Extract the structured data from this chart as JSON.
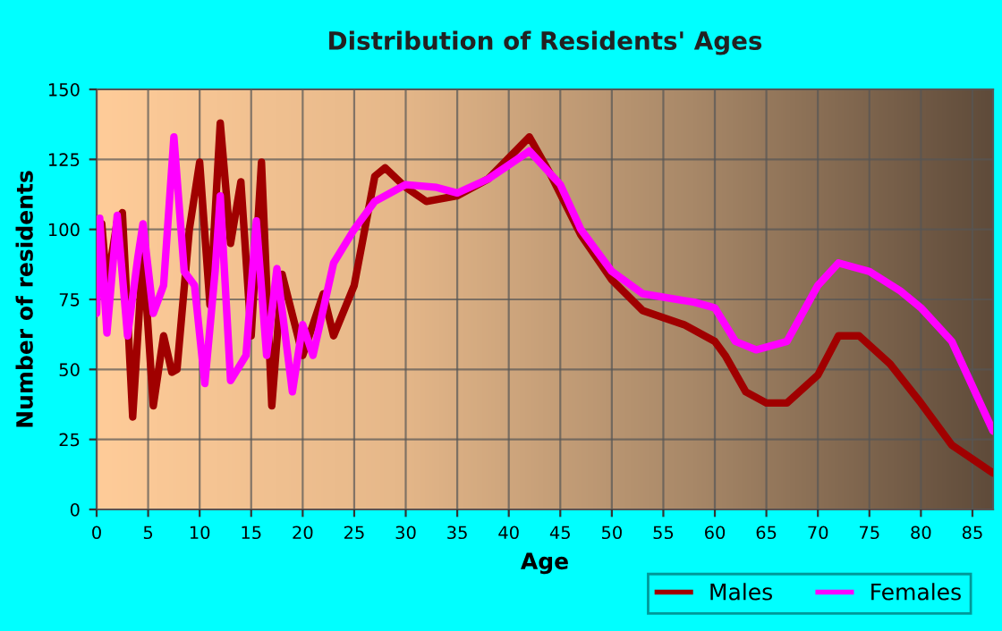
{
  "chart_data": {
    "type": "line",
    "title": "Distribution of Residents' Ages",
    "xlabel": "Age",
    "ylabel": "Number of residents",
    "xlim": [
      0,
      87
    ],
    "xticks": [
      0,
      5,
      10,
      15,
      20,
      25,
      30,
      35,
      40,
      45,
      50,
      55,
      60,
      65,
      70,
      75,
      80,
      85
    ],
    "ylim": [
      0,
      150
    ],
    "yticks": [
      0,
      25,
      50,
      75,
      100,
      125,
      150
    ],
    "grid": true,
    "legend": "bottom right",
    "marker": "none",
    "line_style": "solid",
    "series": [
      {
        "name": "Males",
        "color": "#a00000",
        "x": [
          0,
          0.5,
          1,
          2,
          2.5,
          3.5,
          4.5,
          5.5,
          6.5,
          7.3,
          7.8,
          9,
          10,
          11,
          12,
          13,
          14,
          15,
          16,
          17,
          18,
          20,
          22,
          23,
          25,
          27,
          28,
          30,
          32,
          35,
          38,
          42,
          44,
          47,
          50,
          53,
          57,
          60,
          61,
          63,
          65,
          67,
          70,
          72,
          74,
          77,
          80,
          83,
          87
        ],
        "values": [
          75,
          102,
          80,
          103,
          106,
          33,
          92,
          37,
          62,
          49,
          50,
          100,
          124,
          73,
          138,
          95,
          117,
          62,
          124,
          37,
          84,
          55,
          77,
          62,
          80,
          119,
          122,
          115,
          110,
          112,
          118,
          133,
          120,
          98,
          82,
          71,
          66,
          60,
          55,
          42,
          38,
          38,
          48,
          62,
          62,
          52,
          38,
          23,
          13
        ]
      },
      {
        "name": "Females",
        "color": "#ff00ff",
        "x": [
          0,
          0.3,
          1,
          2,
          3,
          4,
          4.5,
          5.5,
          6.5,
          7.5,
          8.5,
          9.5,
          10.5,
          11.5,
          12,
          13,
          14.5,
          15.5,
          16.5,
          17.5,
          19,
          20,
          21,
          23,
          25,
          27,
          30,
          33,
          35,
          38,
          42,
          45,
          47,
          50,
          53,
          58,
          60,
          62,
          64,
          67,
          70,
          72,
          75,
          78,
          80,
          83,
          87
        ],
        "values": [
          70,
          104,
          63,
          105,
          62,
          90,
          102,
          70,
          80,
          133,
          85,
          80,
          45,
          85,
          112,
          46,
          55,
          103,
          55,
          86,
          42,
          66,
          55,
          88,
          100,
          110,
          116,
          115,
          113,
          118,
          128,
          116,
          100,
          85,
          77,
          74,
          72,
          60,
          57,
          60,
          80,
          88,
          85,
          78,
          72,
          60,
          28
        ]
      }
    ]
  }
}
